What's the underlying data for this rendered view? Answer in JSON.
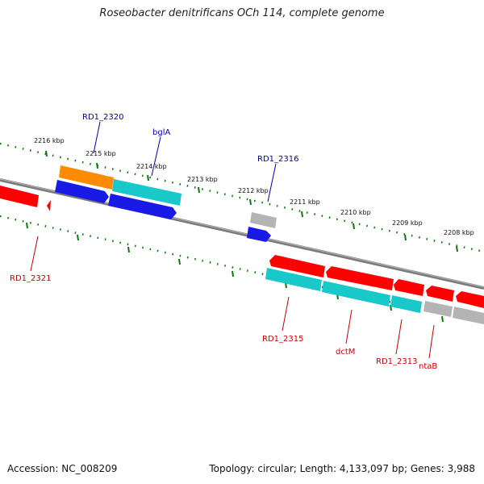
{
  "title": "Roseobacter denitrificans OCh 114, complete genome",
  "footer": {
    "accession": "Accession: NC_008209",
    "summary": "Topology: circular; Length: 4,133,097 bp; Genes: 3,988"
  },
  "colors": {
    "backbone": "#7a7a7a",
    "ticks": "#0a7a0a",
    "forward_label": "#0000aa",
    "reverse_label": "#cc0000",
    "red_gene": "#ff0000",
    "blue_gene": "#1a1ae6",
    "cyan_gene": "#19c8c8",
    "orange_gene": "#ff8c00",
    "grey_gene": "#b4b4b4"
  },
  "tick_labels": [
    "2216 kbp",
    "2215 kbp",
    "2214 kbp",
    "2213 kbp",
    "2212 kbp",
    "2211 kbp",
    "2210 kbp",
    "2209 kbp",
    "2208 kbp"
  ],
  "gene_labels": {
    "forward": [
      "RD1_2320",
      "bglA",
      "RD1_2316"
    ],
    "reverse": [
      "RD1_2321",
      "RD1_2315",
      "dctM",
      "RD1_2313",
      "ntaB"
    ]
  }
}
